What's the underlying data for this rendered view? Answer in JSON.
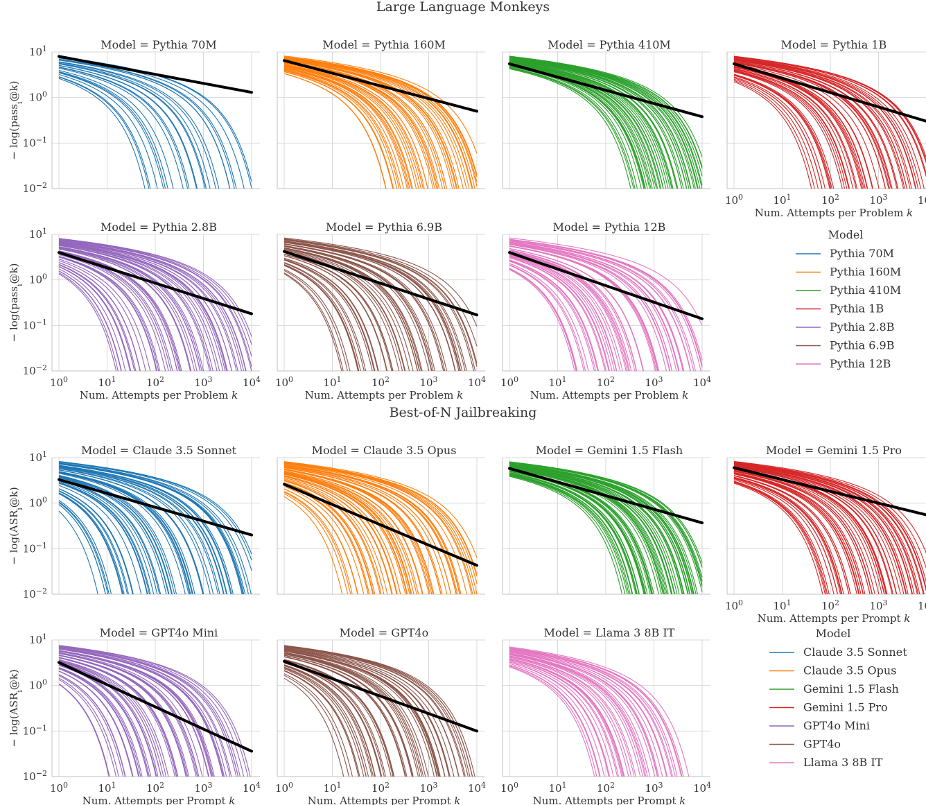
{
  "colors": {
    "blue": "#1f77b4",
    "orange": "#ff7f0e",
    "green": "#2ca02c",
    "red": "#d62728",
    "purple": "#9467bd",
    "brown": "#8c564b",
    "pink": "#e377c2",
    "fit": "#000000",
    "grid": "#d9d9d9",
    "axis": "#c0c0c0"
  },
  "chart_data": [
    {
      "type": "line",
      "title": "Large Language Monkeys",
      "xlabel": "Num. Attempts per Problem k",
      "ylabel": "− log(pass_i@k)",
      "x_scale": "log",
      "y_scale": "log",
      "xlim": [
        1,
        10000
      ],
      "ylim": [
        0.01,
        10
      ],
      "x_ticks": [
        "10^0",
        "10^1",
        "10^2",
        "10^3",
        "10^4"
      ],
      "y_ticks": [
        "10^1",
        "10^0",
        "10^-1",
        "10^-2"
      ],
      "legend": {
        "title": "Model",
        "entries": [
          {
            "label": "Pythia 70M",
            "color": "blue"
          },
          {
            "label": "Pythia 160M",
            "color": "orange"
          },
          {
            "label": "Pythia 410M",
            "color": "green"
          },
          {
            "label": "Pythia 1B",
            "color": "red"
          },
          {
            "label": "Pythia 2.8B",
            "color": "purple"
          },
          {
            "label": "Pythia 6.9B",
            "color": "brown"
          },
          {
            "label": "Pythia 12B",
            "color": "pink"
          }
        ]
      },
      "panels": [
        {
          "title": "Model = Pythia 70M",
          "color": "blue",
          "fit": {
            "start": 8.0,
            "end": 1.3
          },
          "n_problems": 25,
          "min_p": 0.0004,
          "max_p": 0.08
        },
        {
          "title": "Model = Pythia 160M",
          "color": "orange",
          "fit": {
            "start": 6.5,
            "end": 0.5
          },
          "n_problems": 45,
          "min_p": 0.0003,
          "max_p": 0.035
        },
        {
          "title": "Model = Pythia 410M",
          "color": "green",
          "fit": {
            "start": 5.5,
            "end": 0.38
          },
          "n_problems": 50,
          "min_p": 0.0003,
          "max_p": 0.012
        },
        {
          "title": "Model = Pythia 1B",
          "color": "red",
          "fit": {
            "start": 5.5,
            "end": 0.3
          },
          "n_problems": 55,
          "min_p": 0.0003,
          "max_p": 0.1
        },
        {
          "title": "Model = Pythia 2.8B",
          "color": "purple",
          "fit": {
            "start": 4.0,
            "end": 0.18
          },
          "n_problems": 60,
          "min_p": 0.0003,
          "max_p": 0.25
        },
        {
          "title": "Model = Pythia 6.9B",
          "color": "brown",
          "fit": {
            "start": 4.2,
            "end": 0.17
          },
          "n_problems": 55,
          "min_p": 0.0003,
          "max_p": 0.25
        },
        {
          "title": "Model = Pythia 12B",
          "color": "pink",
          "fit": {
            "start": 4.0,
            "end": 0.14
          },
          "n_problems": 60,
          "min_p": 0.0003,
          "max_p": 0.2
        }
      ]
    },
    {
      "type": "line",
      "title": "Best-of-N Jailbreaking",
      "xlabel": "Num. Attempts per Prompt k",
      "ylabel": "− log(ASR_i@k)",
      "x_scale": "log",
      "y_scale": "log",
      "xlim": [
        1,
        10000
      ],
      "ylim": [
        0.01,
        10
      ],
      "x_ticks": [
        "10^0",
        "10^1",
        "10^2",
        "10^3",
        "10^4"
      ],
      "y_ticks": [
        "10^1",
        "10^0",
        "10^-1",
        "10^-2"
      ],
      "legend": {
        "title": "Model",
        "entries": [
          {
            "label": "Claude 3.5 Sonnet",
            "color": "blue"
          },
          {
            "label": "Claude 3.5 Opus",
            "color": "orange"
          },
          {
            "label": "Gemini 1.5 Flash",
            "color": "green"
          },
          {
            "label": "Gemini 1.5 Pro",
            "color": "red"
          },
          {
            "label": "GPT4o Mini",
            "color": "purple"
          },
          {
            "label": "GPT4o",
            "color": "brown"
          },
          {
            "label": "Llama 3 8B IT",
            "color": "pink"
          }
        ]
      },
      "panels": [
        {
          "title": "Model = Claude 3.5 Sonnet",
          "color": "blue",
          "fit": {
            "start": 3.3,
            "end": 0.2
          },
          "n_problems": 60,
          "min_p": 0.0003,
          "max_p": 0.5
        },
        {
          "title": "Model = Claude 3.5 Opus",
          "color": "orange",
          "fit": {
            "start": 2.6,
            "end": 0.043
          },
          "n_problems": 60,
          "min_p": 0.0003,
          "max_p": 0.2
        },
        {
          "title": "Model = Gemini 1.5 Flash",
          "color": "green",
          "fit": {
            "start": 5.8,
            "end": 0.37
          },
          "n_problems": 60,
          "min_p": 0.0003,
          "max_p": 0.02
        },
        {
          "title": "Model = Gemini 1.5 Pro",
          "color": "red",
          "fit": {
            "start": 6.0,
            "end": 0.55
          },
          "n_problems": 60,
          "min_p": 0.0003,
          "max_p": 0.06
        },
        {
          "title": "Model = GPT4o Mini",
          "color": "purple",
          "fit": {
            "start": 3.2,
            "end": 0.036
          },
          "n_problems": 60,
          "min_p": 0.0005,
          "max_p": 0.3
        },
        {
          "title": "Model = GPT4o",
          "color": "brown",
          "fit": {
            "start": 3.4,
            "end": 0.1
          },
          "n_problems": 60,
          "min_p": 0.0005,
          "max_p": 0.2
        },
        {
          "title": "Model = Llama 3 8B IT",
          "color": "pink",
          "fit": null,
          "n_problems": 40,
          "min_p": 0.001,
          "max_p": 0.08
        }
      ]
    }
  ]
}
